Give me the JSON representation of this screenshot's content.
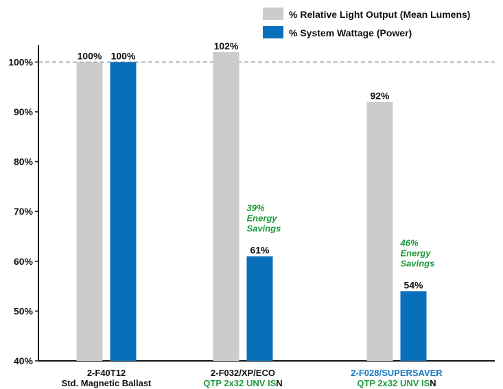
{
  "chart_data": {
    "type": "bar",
    "categories": [
      {
        "line1": "2-F40T12",
        "line1_color": "#111111",
        "line2_main": "Std. Magnetic Ballast",
        "line2_main_color": "#111111",
        "line2_tail": ""
      },
      {
        "line1": "2-F032/XP/ECO",
        "line1_color": "#111111",
        "line2_main": "QTP 2x32 UNV IS",
        "line2_main_color": "#1e9a3c",
        "line2_tail": "N"
      },
      {
        "line1": "2-F028/SUPERSAVER",
        "line1_color": "#1a7bbf",
        "line2_main": "QTP 2x32 UNV IS",
        "line2_main_color": "#1e9a3c",
        "line2_tail": "N"
      }
    ],
    "series": [
      {
        "name": "% Relative Light Output (Mean Lumens)",
        "color": "#cccccc",
        "values": [
          100,
          102,
          92
        ],
        "labels": [
          "100%",
          "102%",
          "92%"
        ]
      },
      {
        "name": "% System Wattage (Power)",
        "color": "#0a6fba",
        "values": [
          100,
          61,
          54
        ],
        "labels": [
          "100%",
          "61%",
          "54%"
        ]
      }
    ],
    "ylim": [
      40,
      104
    ],
    "yticks": [
      40,
      50,
      60,
      70,
      80,
      90,
      100
    ],
    "ytick_labels": [
      "40%",
      "50%",
      "60%",
      "70%",
      "80%",
      "90%",
      "100%"
    ],
    "reference_line": 100,
    "annotations": [
      {
        "category_index": 1,
        "lines": [
          "39%",
          "Energy",
          "Savings"
        ]
      },
      {
        "category_index": 2,
        "lines": [
          "46%",
          "Energy",
          "Savings"
        ]
      }
    ],
    "legend_position": "top-right",
    "grid": false
  }
}
